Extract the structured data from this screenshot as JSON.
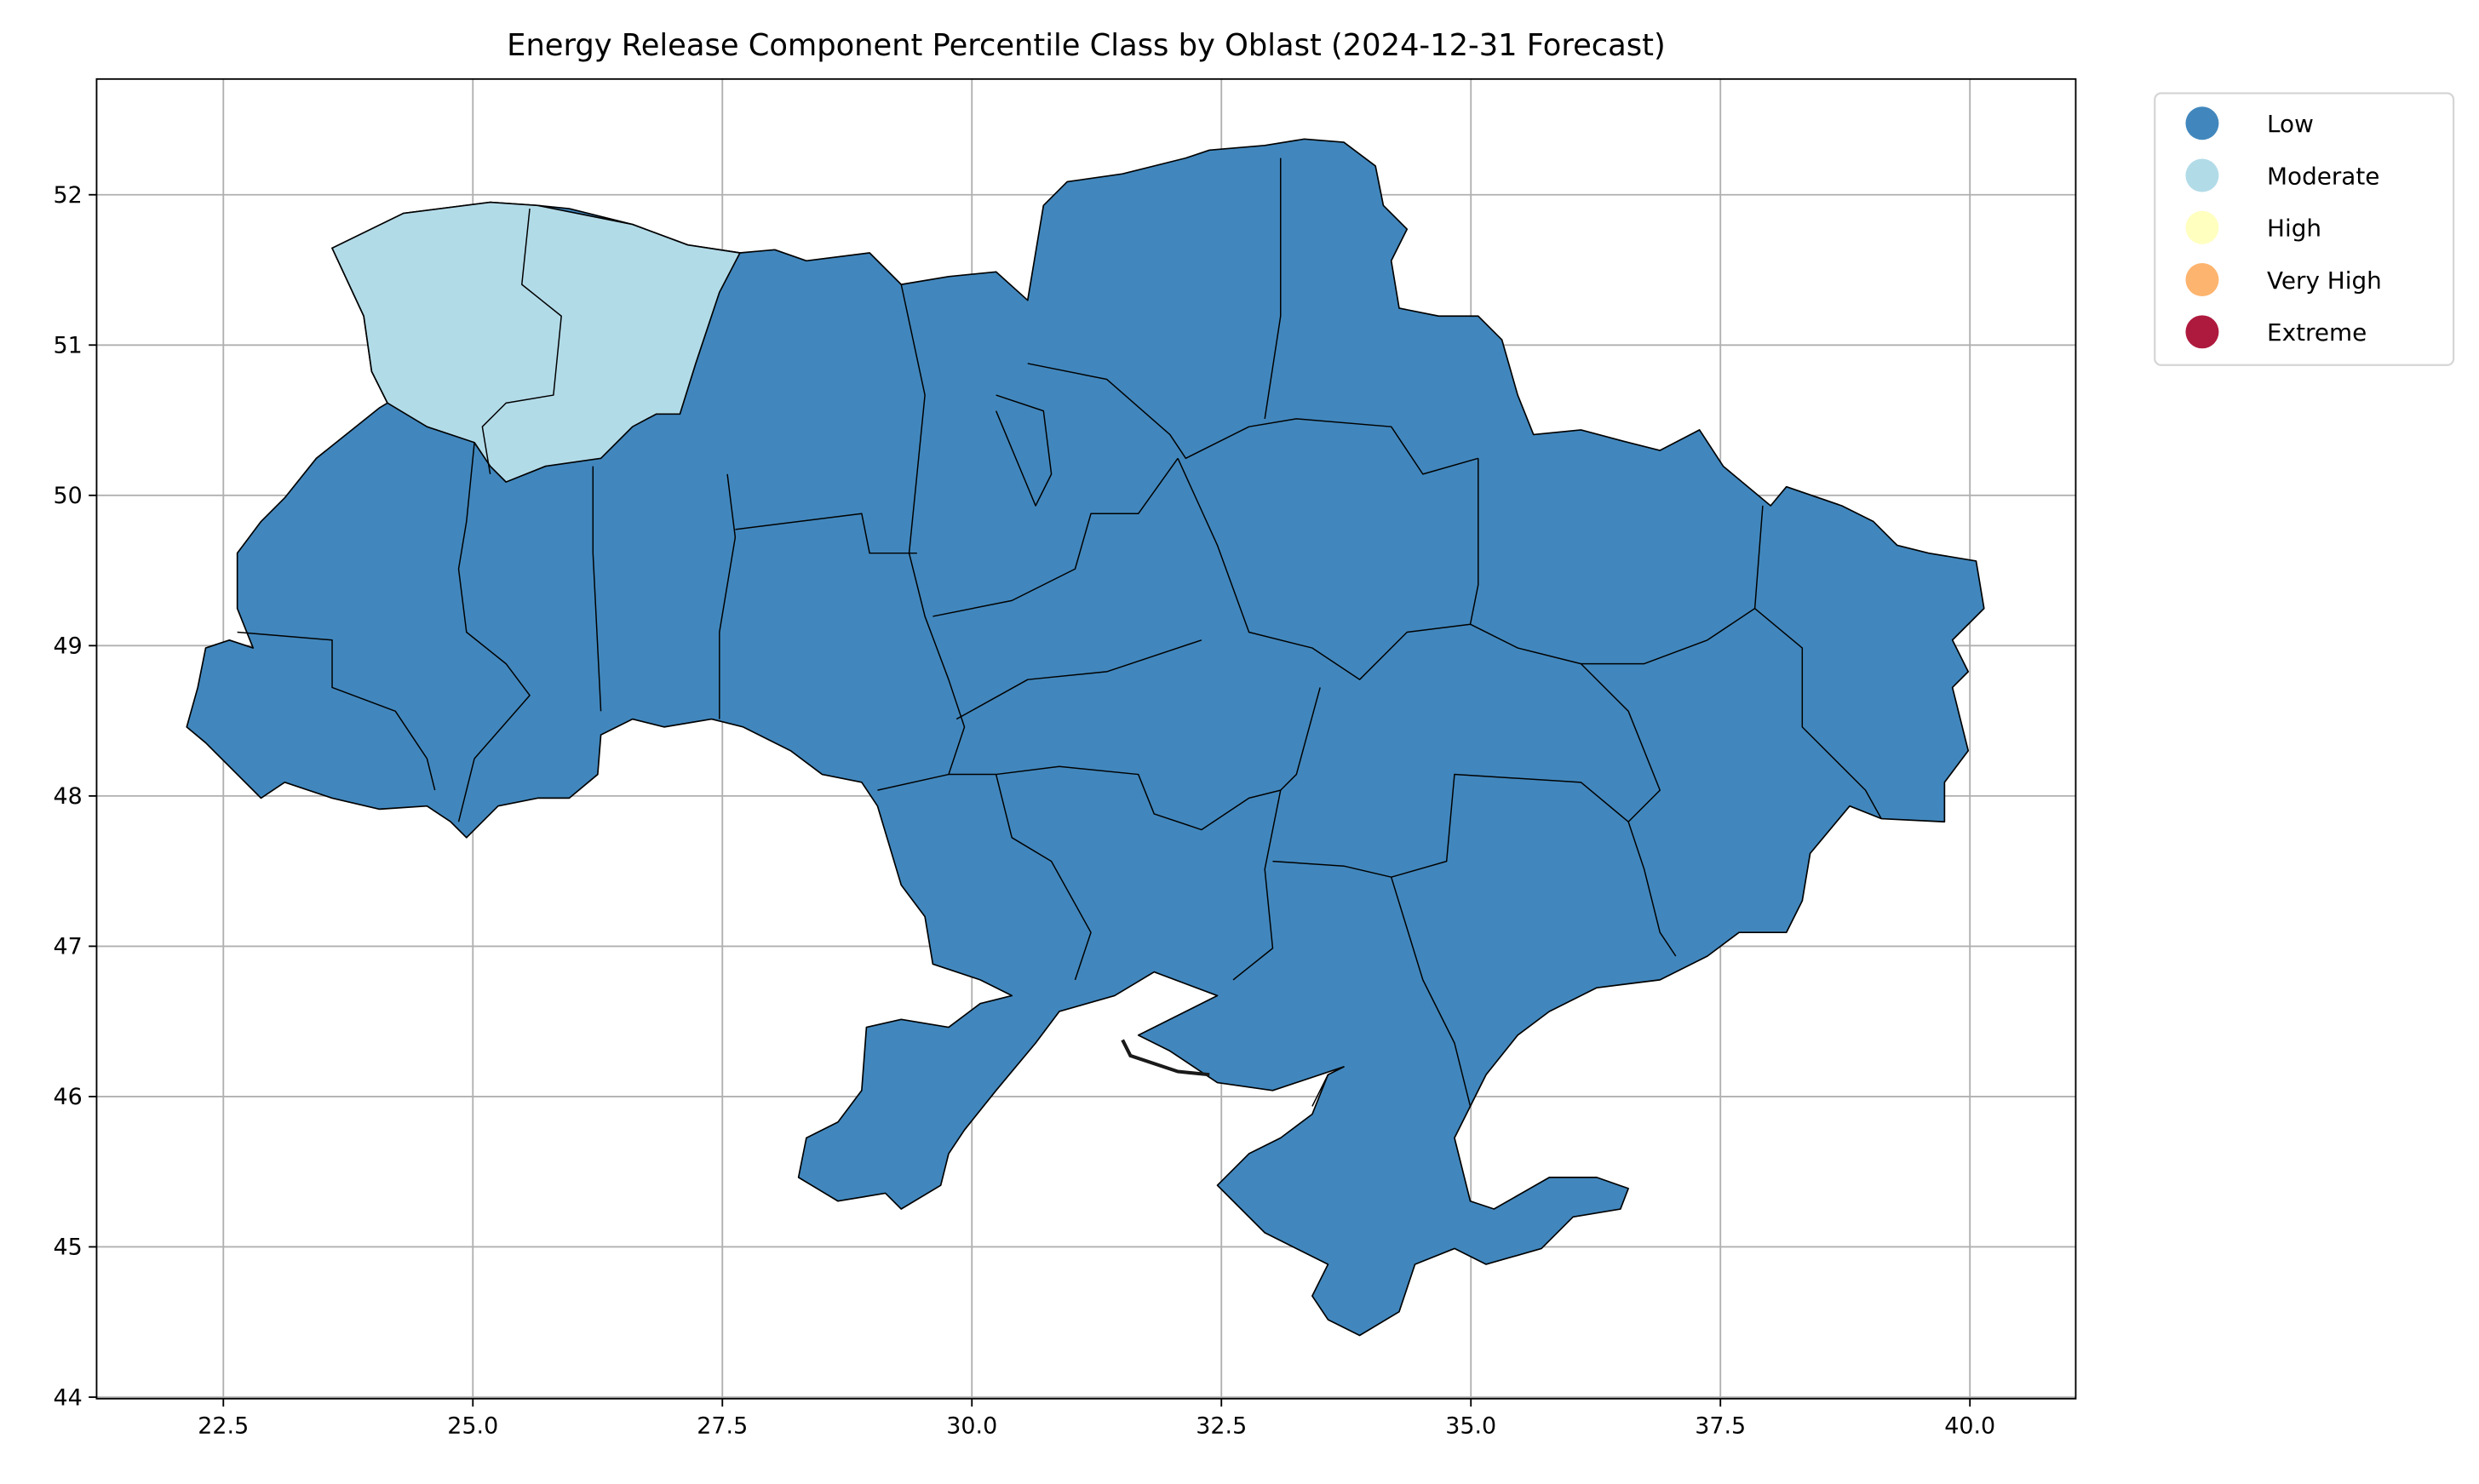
{
  "chart_data": {
    "type": "choropleth-map",
    "title": "Energy Release Component Percentile Class by Oblast (2024-12-31 Forecast)",
    "xlabel": "",
    "ylabel": "",
    "xlim": [
      21.23,
      41.06
    ],
    "ylim": [
      43.99,
      52.77
    ],
    "xticks": [
      "22.5",
      "25.0",
      "27.5",
      "30.0",
      "32.5",
      "35.0",
      "37.5",
      "40.0"
    ],
    "yticks": [
      "44",
      "45",
      "46",
      "47",
      "48",
      "49",
      "50",
      "51",
      "52"
    ],
    "grid": true,
    "legend_position": "outside-top-right",
    "legend": [
      {
        "label": "Low",
        "color": "#4187bd"
      },
      {
        "label": "Moderate",
        "color": "#b2dbe8"
      },
      {
        "label": "High",
        "color": "#ffffc0"
      },
      {
        "label": "Very High",
        "color": "#fdb46f"
      },
      {
        "label": "Extreme",
        "color": "#ae1a3d"
      }
    ],
    "regions_by_class": {
      "Low": "all other oblasts",
      "Moderate": [
        "Volyn",
        "Rivne"
      ]
    }
  }
}
